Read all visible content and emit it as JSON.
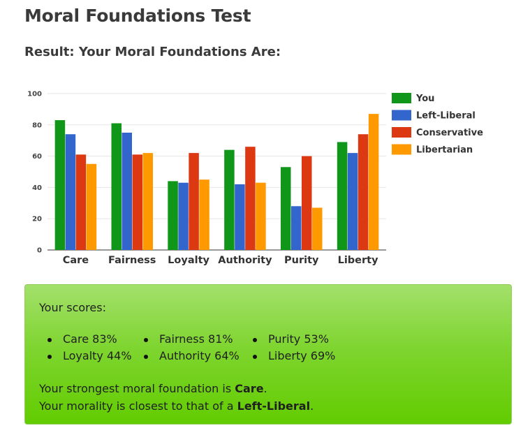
{
  "page": {
    "title": "Moral Foundations Test",
    "subtitle": "Result: Your Moral Foundations Are:"
  },
  "chart_data": {
    "type": "bar",
    "categories": [
      "Care",
      "Fairness",
      "Loyalty",
      "Authority",
      "Purity",
      "Liberty"
    ],
    "series": [
      {
        "name": "You",
        "color": "#109618",
        "values": [
          83,
          81,
          44,
          64,
          53,
          69
        ]
      },
      {
        "name": "Left-Liberal",
        "color": "#3366cc",
        "values": [
          74,
          75,
          43,
          42,
          28,
          62
        ]
      },
      {
        "name": "Conservative",
        "color": "#dc3912",
        "values": [
          61,
          61,
          62,
          66,
          60,
          74
        ]
      },
      {
        "name": "Libertarian",
        "color": "#ff9900",
        "values": [
          55,
          62,
          45,
          43,
          27,
          87
        ]
      }
    ],
    "yticks": [
      0,
      20,
      40,
      60,
      80,
      100
    ],
    "ylim": [
      0,
      100
    ],
    "grid": true,
    "legend_position": "right"
  },
  "results": {
    "heading": "Your scores:",
    "scores": [
      {
        "label": "Care 83%"
      },
      {
        "label": "Loyalty 44%"
      },
      {
        "label": "Fairness 81%"
      },
      {
        "label": "Authority 64%"
      },
      {
        "label": "Purity 53%"
      },
      {
        "label": "Liberty 69%"
      }
    ],
    "strongest_prefix": "Your strongest moral foundation is ",
    "strongest_value": "Care",
    "strongest_suffix": ".",
    "closest_prefix": "Your morality is closest to that of a ",
    "closest_value": "Left-Liberal",
    "closest_suffix": "."
  }
}
